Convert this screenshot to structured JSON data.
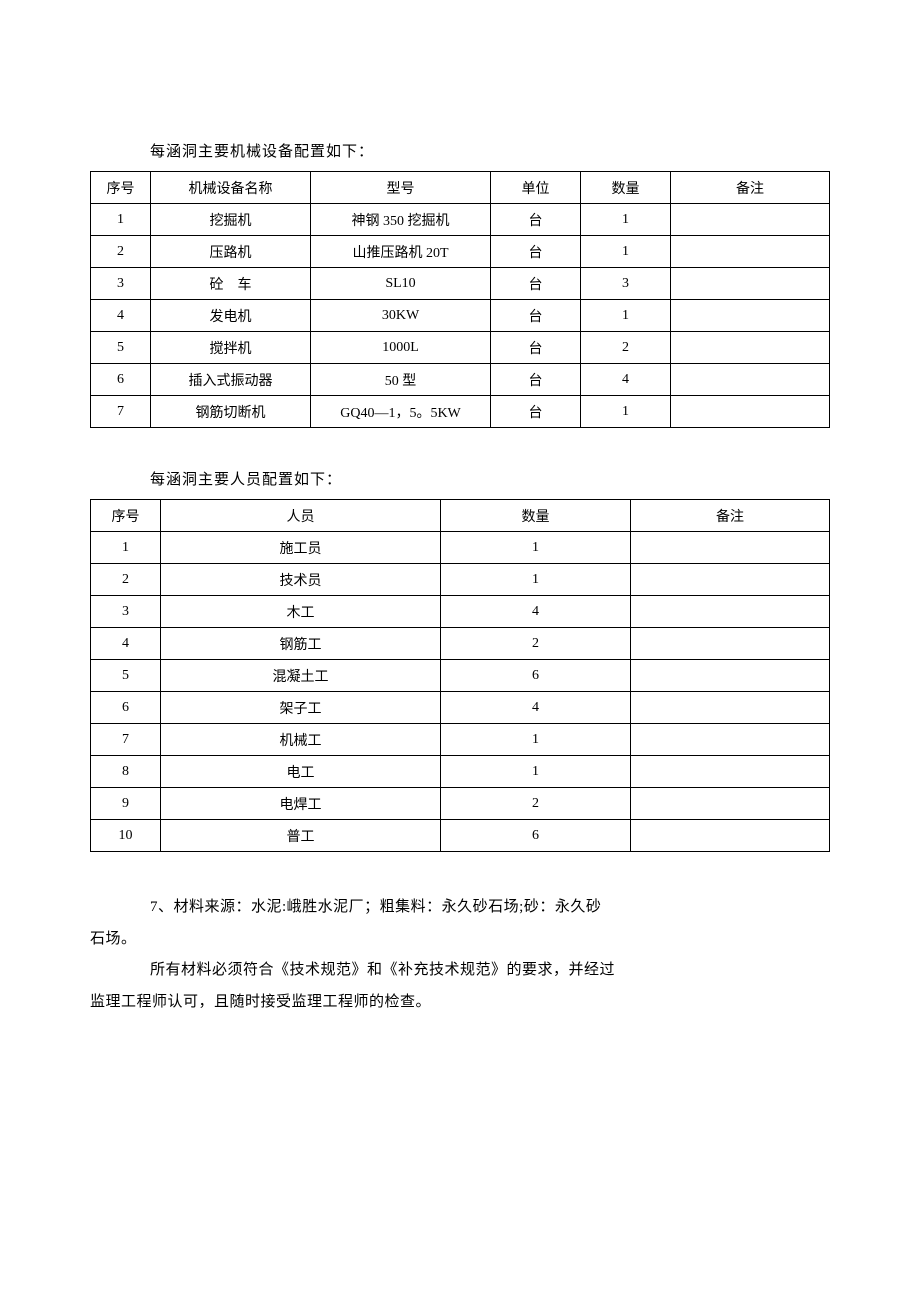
{
  "table1": {
    "title": "每涵洞主要机械设备配置如下：",
    "col_widths": [
      "60px",
      "160px",
      "180px",
      "90px",
      "90px",
      "auto"
    ],
    "headers": [
      "序号",
      "机械设备名称",
      "型号",
      "单位",
      "数量",
      "备注"
    ],
    "rows": [
      [
        "1",
        "挖掘机",
        "神钢 350 挖掘机",
        "台",
        "1",
        ""
      ],
      [
        "2",
        "压路机",
        "山推压路机 20T",
        "台",
        "1",
        ""
      ],
      [
        "3",
        "砼　车",
        "SL10",
        "台",
        "3",
        ""
      ],
      [
        "4",
        "发电机",
        "30KW",
        "台",
        "1",
        ""
      ],
      [
        "5",
        "搅拌机",
        "1000L",
        "台",
        "2",
        ""
      ],
      [
        "6",
        "插入式振动器",
        "50 型",
        "台",
        "4",
        ""
      ],
      [
        "7",
        "钢筋切断机",
        "GQ40—1，5。5KW",
        "台",
        "1",
        ""
      ]
    ]
  },
  "table2": {
    "title": "每涵洞主要人员配置如下：",
    "col_widths": [
      "70px",
      "280px",
      "190px",
      "auto"
    ],
    "headers": [
      "序号",
      "人员",
      "数量",
      "备注"
    ],
    "rows": [
      [
        "1",
        "施工员",
        "1",
        ""
      ],
      [
        "2",
        "技术员",
        "1",
        ""
      ],
      [
        "3",
        "木工",
        "4",
        ""
      ],
      [
        "4",
        "钢筋工",
        "2",
        ""
      ],
      [
        "5",
        "混凝土工",
        "6",
        ""
      ],
      [
        "6",
        "架子工",
        "4",
        ""
      ],
      [
        "7",
        "机械工",
        "1",
        ""
      ],
      [
        "8",
        "电工",
        "1",
        ""
      ],
      [
        "9",
        "电焊工",
        "2",
        ""
      ],
      [
        "10",
        "普工",
        "6",
        ""
      ]
    ]
  },
  "paragraphs": [
    {
      "cls": "indent",
      "text": "7、材料来源：水泥:峨胜水泥厂；粗集料：永久砂石场;砂：永久砂"
    },
    {
      "cls": "noindent",
      "text": "石场。"
    },
    {
      "cls": "indent",
      "text": "所有材料必须符合《技术规范》和《补充技术规范》的要求，并经过"
    },
    {
      "cls": "noindent",
      "text": "监理工程师认可，且随时接受监理工程师的检查。"
    }
  ]
}
